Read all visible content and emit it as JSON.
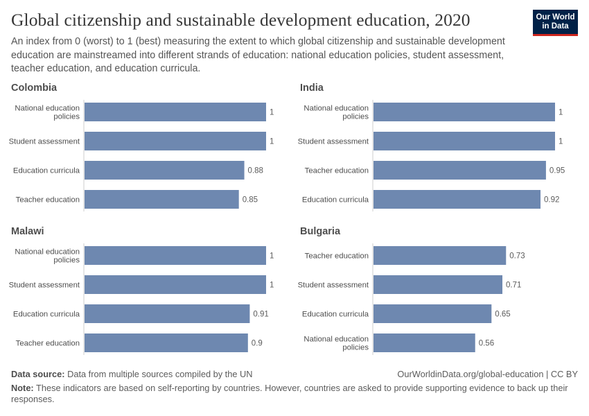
{
  "header": {
    "title": "Global citizenship and sustainable development education, 2020",
    "subtitle": "An index from 0 (worst) to 1 (best) measuring the extent to which global citizenship and sustainable development education are mainstreamed into different strands of education: national education policies, student assessment, teacher education, and education curricula.",
    "logo_line1": "Our World",
    "logo_line2": "in Data"
  },
  "footer": {
    "source_label": "Data source:",
    "source_text": "Data from multiple sources compiled by the UN",
    "url_text": "OurWorldinData.org/global-education | CC BY",
    "note_label": "Note:",
    "note_text": "These indicators are based on self-reporting by countries. However, countries are asked to provide supporting evidence to back up their responses."
  },
  "colors": {
    "bar": "#6e88b0",
    "axis": "#cccccc",
    "label": "#4d4d4d",
    "value": "#5b5b5b"
  },
  "chart_data": [
    {
      "type": "bar",
      "title": "Colombia",
      "categories": [
        "National education policies",
        "Student assessment",
        "Education curricula",
        "Teacher education"
      ],
      "values": [
        1,
        1,
        0.88,
        0.85
      ],
      "value_labels": [
        "1",
        "1",
        "0.88",
        "0.85"
      ],
      "xlim": [
        0,
        1
      ]
    },
    {
      "type": "bar",
      "title": "India",
      "categories": [
        "National education policies",
        "Student assessment",
        "Teacher education",
        "Education curricula"
      ],
      "values": [
        1,
        1,
        0.95,
        0.92
      ],
      "value_labels": [
        "1",
        "1",
        "0.95",
        "0.92"
      ],
      "xlim": [
        0,
        1
      ]
    },
    {
      "type": "bar",
      "title": "Malawi",
      "categories": [
        "National education policies",
        "Student assessment",
        "Education curricula",
        "Teacher education"
      ],
      "values": [
        1,
        1,
        0.91,
        0.9
      ],
      "value_labels": [
        "1",
        "1",
        "0.91",
        "0.9"
      ],
      "xlim": [
        0,
        1
      ]
    },
    {
      "type": "bar",
      "title": "Bulgaria",
      "categories": [
        "Teacher education",
        "Student assessment",
        "Education curricula",
        "National education policies"
      ],
      "values": [
        0.73,
        0.71,
        0.65,
        0.56
      ],
      "value_labels": [
        "0.73",
        "0.71",
        "0.65",
        "0.56"
      ],
      "xlim": [
        0,
        1
      ]
    }
  ]
}
